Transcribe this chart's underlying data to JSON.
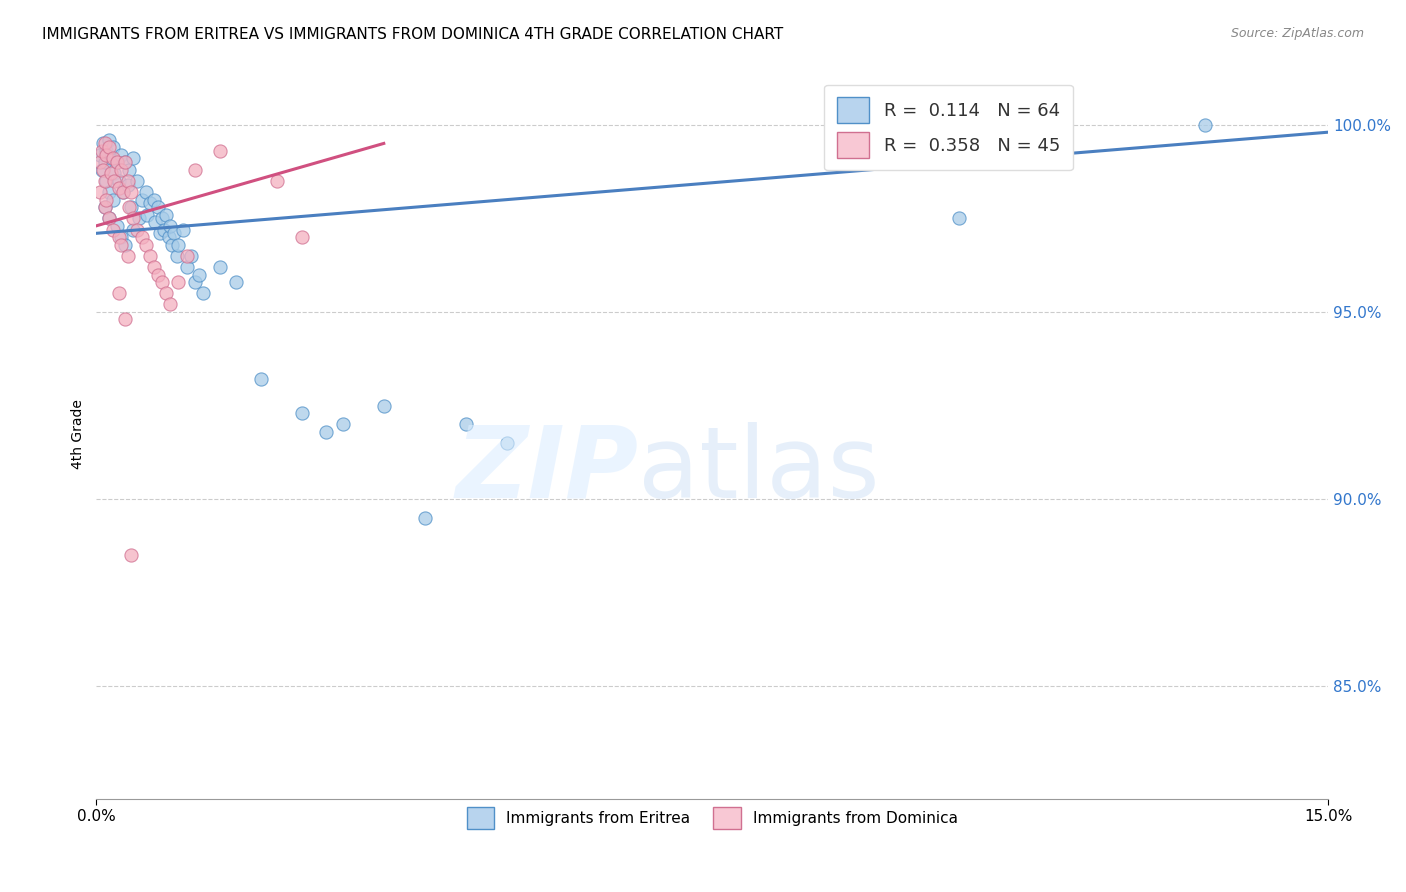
{
  "title": "IMMIGRANTS FROM ERITREA VS IMMIGRANTS FROM DOMINICA 4TH GRADE CORRELATION CHART",
  "source": "Source: ZipAtlas.com",
  "ylabel": "4th Grade",
  "yticks": [
    85.0,
    90.0,
    95.0,
    100.0
  ],
  "xlim": [
    0.0,
    15.0
  ],
  "ylim": [
    82.0,
    101.5
  ],
  "color_eritrea": "#a8cce8",
  "color_dominica": "#f4b0c0",
  "edge_eritrea": "#5090c8",
  "edge_dominica": "#d07090",
  "trendline_eritrea": "#4a7fc0",
  "trendline_dominica": "#d05080",
  "legend_label_e": "R =  0.114   N = 64",
  "legend_label_d": "R =  0.358   N = 45",
  "bottom_label_e": "Immigrants from Eritrea",
  "bottom_label_d": "Immigrants from Dominica",
  "trendline_e_x0": 0.0,
  "trendline_e_y0": 97.1,
  "trendline_e_x1": 15.0,
  "trendline_e_y1": 99.8,
  "trendline_d_x0": 0.0,
  "trendline_d_y0": 97.3,
  "trendline_d_x1": 3.5,
  "trendline_d_y1": 99.5,
  "eritrea_x": [
    0.05,
    0.07,
    0.08,
    0.1,
    0.1,
    0.12,
    0.12,
    0.15,
    0.15,
    0.15,
    0.18,
    0.2,
    0.2,
    0.22,
    0.25,
    0.25,
    0.28,
    0.3,
    0.3,
    0.32,
    0.35,
    0.35,
    0.38,
    0.4,
    0.42,
    0.45,
    0.45,
    0.5,
    0.52,
    0.55,
    0.6,
    0.62,
    0.65,
    0.7,
    0.72,
    0.75,
    0.78,
    0.8,
    0.82,
    0.85,
    0.88,
    0.9,
    0.92,
    0.95,
    0.98,
    1.0,
    1.05,
    1.1,
    1.15,
    1.2,
    1.25,
    1.3,
    1.5,
    1.7,
    2.0,
    2.5,
    2.8,
    3.0,
    3.5,
    4.0,
    4.5,
    5.0,
    13.5,
    10.5
  ],
  "eritrea_y": [
    99.2,
    98.8,
    99.5,
    99.0,
    97.8,
    99.3,
    98.5,
    99.6,
    98.2,
    97.5,
    99.1,
    99.4,
    98.0,
    98.7,
    99.0,
    97.3,
    98.5,
    99.2,
    97.0,
    98.2,
    99.0,
    96.8,
    98.4,
    98.8,
    97.8,
    99.1,
    97.2,
    98.5,
    97.5,
    98.0,
    98.2,
    97.6,
    97.9,
    98.0,
    97.4,
    97.8,
    97.1,
    97.5,
    97.2,
    97.6,
    97.0,
    97.3,
    96.8,
    97.1,
    96.5,
    96.8,
    97.2,
    96.2,
    96.5,
    95.8,
    96.0,
    95.5,
    96.2,
    95.8,
    93.2,
    92.3,
    91.8,
    92.0,
    92.5,
    89.5,
    92.0,
    91.5,
    100.0,
    97.5
  ],
  "dominica_x": [
    0.05,
    0.05,
    0.07,
    0.08,
    0.1,
    0.1,
    0.1,
    0.12,
    0.12,
    0.15,
    0.15,
    0.18,
    0.2,
    0.2,
    0.22,
    0.25,
    0.28,
    0.28,
    0.3,
    0.3,
    0.32,
    0.35,
    0.38,
    0.38,
    0.4,
    0.42,
    0.45,
    0.5,
    0.55,
    0.6,
    0.65,
    0.7,
    0.75,
    0.8,
    0.85,
    0.9,
    1.0,
    1.1,
    1.2,
    1.5,
    2.2,
    2.5,
    0.35,
    0.28,
    0.42
  ],
  "dominica_y": [
    99.0,
    98.2,
    99.3,
    98.8,
    99.5,
    98.5,
    97.8,
    99.2,
    98.0,
    99.4,
    97.5,
    98.7,
    99.1,
    97.2,
    98.5,
    99.0,
    98.3,
    97.0,
    98.8,
    96.8,
    98.2,
    99.0,
    98.5,
    96.5,
    97.8,
    98.2,
    97.5,
    97.2,
    97.0,
    96.8,
    96.5,
    96.2,
    96.0,
    95.8,
    95.5,
    95.2,
    95.8,
    96.5,
    98.8,
    99.3,
    98.5,
    97.0,
    94.8,
    95.5,
    88.5
  ]
}
